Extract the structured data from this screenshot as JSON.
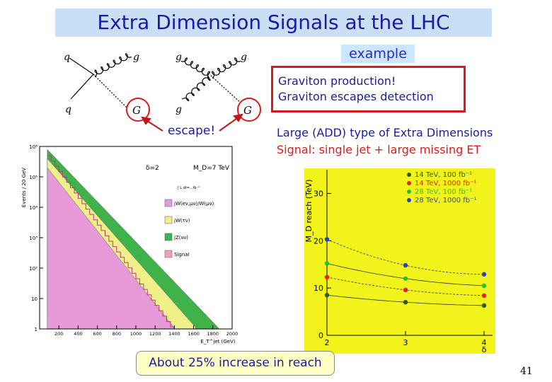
{
  "title": "Extra Dimension Signals at the LHC",
  "example_label": "example",
  "feynman": {
    "left": {
      "q_top": "q",
      "g_top": "g",
      "q_bottom": "q",
      "G": "G"
    },
    "right": {
      "g_top_left": "g",
      "g_top_right": "g",
      "g_bottom": "g",
      "G": "G"
    },
    "escape_label": "escape!"
  },
  "graviton_box": {
    "line1": "Graviton production!",
    "line2": "Graviton  escapes detection"
  },
  "signal_text": {
    "line1": "Large (ADD) type of Extra Dimensions",
    "line2": "Signal: single jet + large missing ET"
  },
  "footer_box": "About 25% increase in reach",
  "page_number": "41",
  "chart_data": [
    {
      "type": "area",
      "ylabel": "Events / 20 GeV",
      "xlabel": "E_T^jet (GeV)",
      "xlim": [
        0,
        2000
      ],
      "ylim_log10": [
        0,
        6
      ],
      "x_ticks": [
        200,
        400,
        600,
        800,
        1000,
        1200,
        1400,
        1600,
        1800,
        2000
      ],
      "x_tick_labels": [
        "200",
        "400",
        "600",
        "800",
        "1000",
        "1200",
        "1400",
        "1600",
        "1800",
        "2000"
      ],
      "y_tick_labels": [
        "1",
        "10",
        "10²",
        "10³",
        "10⁴",
        "10⁵",
        "10⁶"
      ],
      "annotations": {
        "delta": "δ=2",
        "md": "M_D=7 TeV",
        "lumi": "∫ L dt=...fb⁻¹"
      },
      "legend": [
        "jW(eν,μν)/W(μν)",
        "jW(τν)",
        "jZ(νν)",
        "Signal"
      ],
      "colors": {
        "frame": "#000000"
      }
    },
    {
      "type": "scatter",
      "background": "#f3f31c",
      "ylabel": "M_D reach (TeV)",
      "xlabel": "δ",
      "xlim": [
        2,
        4
      ],
      "ylim": [
        0,
        35
      ],
      "x_ticks": [
        2,
        3,
        4
      ],
      "y_ticks": [
        0,
        10,
        20,
        30
      ],
      "series": [
        {
          "name": "14 TeV, 100 fb⁻¹",
          "color": "#2e5c1e",
          "x": [
            2,
            3,
            4
          ],
          "y": [
            8.5,
            7.0,
            6.3
          ]
        },
        {
          "name": "14 TeV, 1000 fb⁻¹",
          "color": "#e8201b",
          "x": [
            2,
            3,
            4
          ],
          "y": [
            12.3,
            9.6,
            8.4
          ]
        },
        {
          "name": "28 TeV, 100 fb⁻¹",
          "color": "#21c42a",
          "x": [
            2,
            3,
            4
          ],
          "y": [
            15.2,
            12.0,
            10.5
          ]
        },
        {
          "name": "28 TeV, 1000 fb⁻¹",
          "color": "#2045c8",
          "x": [
            2,
            3,
            4
          ],
          "y": [
            20.3,
            14.8,
            12.9
          ]
        }
      ]
    }
  ]
}
